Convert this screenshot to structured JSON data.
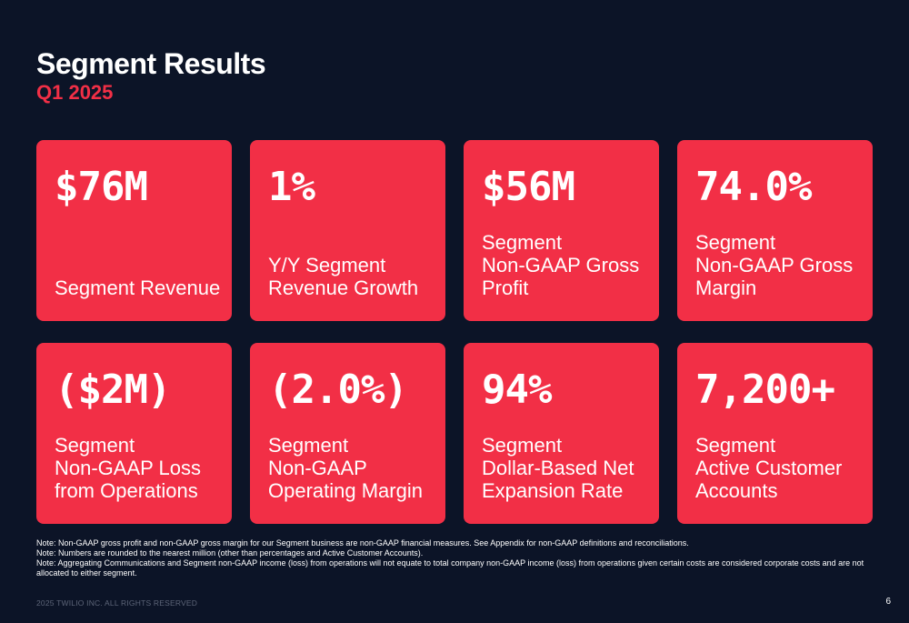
{
  "header": {
    "title": "Segment Results",
    "subtitle": "Q1 2025"
  },
  "cards": [
    {
      "value": "$76M",
      "label": "Segment Revenue"
    },
    {
      "value": "1%",
      "label": "Y/Y Segment\nRevenue Growth"
    },
    {
      "value": "$56M",
      "label": "Segment\nNon-GAAP Gross\nProfit"
    },
    {
      "value": "74.0%",
      "label": "Segment\nNon-GAAP Gross\nMargin"
    },
    {
      "value": "($2M)",
      "label": "Segment\nNon-GAAP Loss\nfrom Operations"
    },
    {
      "value": "(2.0%)",
      "label": "Segment\nNon-GAAP\nOperating Margin"
    },
    {
      "value": "94%",
      "label": "Segment\nDollar-Based Net\nExpansion Rate"
    },
    {
      "value": "7,200+",
      "label": "Segment\nActive Customer\nAccounts"
    }
  ],
  "notes": [
    "Note: Non-GAAP gross profit and non-GAAP gross margin for our Segment business are non-GAAP financial measures. See Appendix for non-GAAP definitions and reconciliations.",
    "Note: Numbers are rounded to the nearest million (other than percentages and Active Customer Accounts).",
    "Note: Aggregating Communications and Segment non-GAAP income (loss) from operations will not equate to total company non-GAAP income (loss) from operations given certain costs are considered corporate costs and are not allocated to either segment."
  ],
  "footer": {
    "copyright": "2025 TWILIO INC. ALL RIGHTS RESERVED",
    "page_number": "6"
  },
  "colors": {
    "background": "#0c1427",
    "accent": "#f22f46"
  }
}
